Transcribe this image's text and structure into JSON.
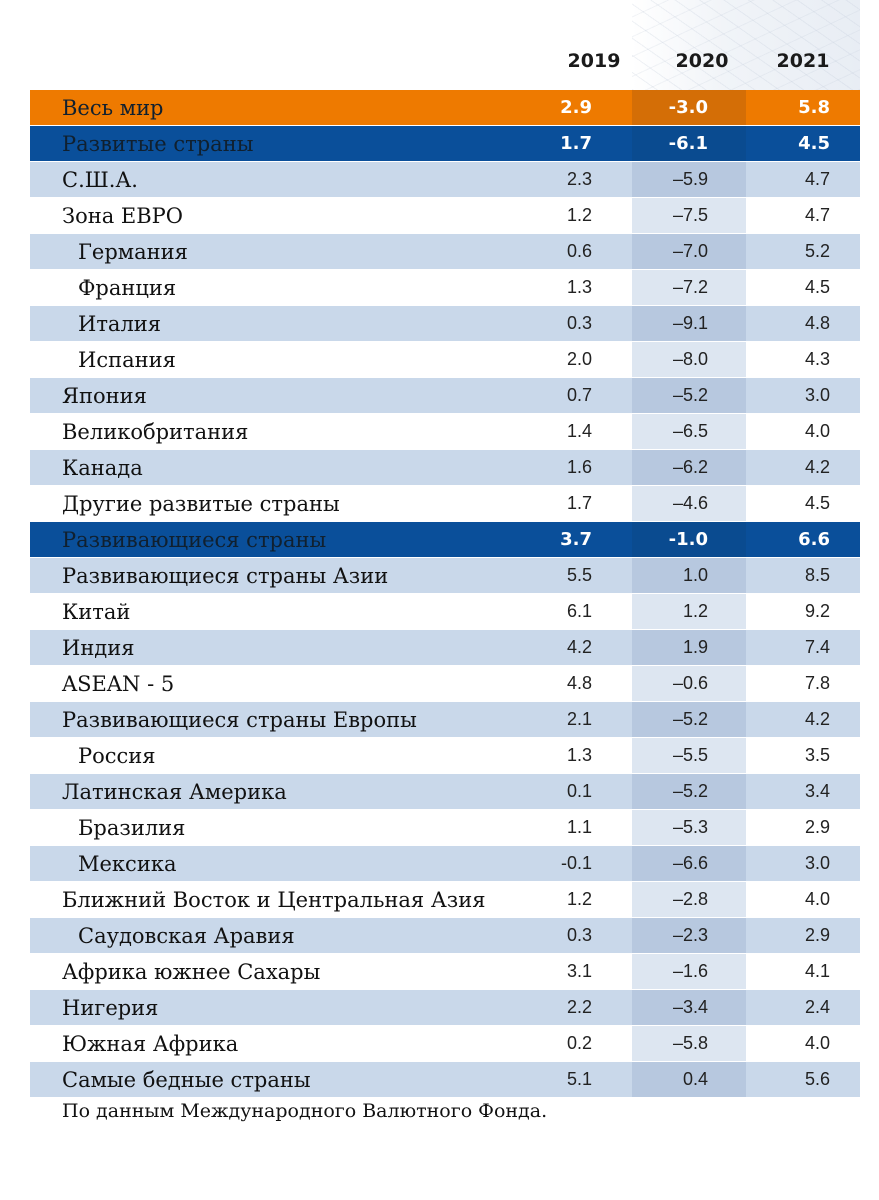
{
  "header": {
    "years": [
      "2019",
      "2020",
      "2021"
    ]
  },
  "rows": [
    {
      "name": "Весь мир",
      "v2019": "2.9",
      "v2020": "-3.0",
      "v2021": "5.8"
    },
    {
      "name": "Развитые страны",
      "v2019": "1.7",
      "v2020": "-6.1",
      "v2021": "4.5"
    },
    {
      "name": "С.Ш.А.",
      "v2019": "2.3",
      "v2020": "–5.9",
      "v2021": "4.7"
    },
    {
      "name": "Зона ЕВРО",
      "v2019": "1.2",
      "v2020": "–7.5",
      "v2021": "4.7"
    },
    {
      "name": "Германия",
      "v2019": "0.6",
      "v2020": "–7.0",
      "v2021": "5.2"
    },
    {
      "name": "Франция",
      "v2019": "1.3",
      "v2020": "–7.2",
      "v2021": "4.5"
    },
    {
      "name": "Италия",
      "v2019": "0.3",
      "v2020": "–9.1",
      "v2021": "4.8"
    },
    {
      "name": "Испания",
      "v2019": "2.0",
      "v2020": "–8.0",
      "v2021": "4.3"
    },
    {
      "name": "Япония",
      "v2019": "0.7",
      "v2020": "–5.2",
      "v2021": "3.0"
    },
    {
      "name": "Великобритания",
      "v2019": "1.4",
      "v2020": "–6.5",
      "v2021": "4.0"
    },
    {
      "name": "Канада",
      "v2019": "1.6",
      "v2020": "–6.2",
      "v2021": "4.2"
    },
    {
      "name": "Другие развитые страны",
      "v2019": "1.7",
      "v2020": "–4.6",
      "v2021": "4.5"
    },
    {
      "name": "Развивающиеся страны",
      "v2019": "3.7",
      "v2020": "-1.0",
      "v2021": "6.6"
    },
    {
      "name": "Развивающиеся страны Азии",
      "v2019": "5.5",
      "v2020": "1.0",
      "v2021": "8.5"
    },
    {
      "name": "Китай",
      "v2019": "6.1",
      "v2020": "1.2",
      "v2021": "9.2"
    },
    {
      "name": "Индия",
      "v2019": "4.2",
      "v2020": "1.9",
      "v2021": "7.4"
    },
    {
      "name": "ASEAN - 5",
      "v2019": "4.8",
      "v2020": "–0.6",
      "v2021": "7.8"
    },
    {
      "name": "Развивающиеся страны Европы",
      "v2019": "2.1",
      "v2020": "–5.2",
      "v2021": "4.2"
    },
    {
      "name": "Россия",
      "v2019": "1.3",
      "v2020": "–5.5",
      "v2021": "3.5"
    },
    {
      "name": "Латинская Америка",
      "v2019": "0.1",
      "v2020": "–5.2",
      "v2021": "3.4"
    },
    {
      "name": "Бразилия",
      "v2019": "1.1",
      "v2020": "–5.3",
      "v2021": "2.9"
    },
    {
      "name": "Мексика",
      "v2019": "-0.1",
      "v2020": "–6.6",
      "v2021": "3.0"
    },
    {
      "name": "Ближний Восток и Центральная Азия",
      "v2019": "1.2",
      "v2020": "–2.8",
      "v2021": "4.0"
    },
    {
      "name": "Саудовская Аравия",
      "v2019": "0.3",
      "v2020": "–2.3",
      "v2021": "2.9"
    },
    {
      "name": "Африка южнее Сахары",
      "v2019": "3.1",
      "v2020": "–1.6",
      "v2021": "4.1"
    },
    {
      "name": "Нигерия",
      "v2019": "2.2",
      "v2020": "–3.4",
      "v2021": "2.4"
    },
    {
      "name": "Южная Африка",
      "v2019": "0.2",
      "v2020": "–5.8",
      "v2021": "4.0"
    },
    {
      "name": "Самые бедные страны",
      "v2019": "5.1",
      "v2020": "0.4",
      "v2021": "5.6"
    }
  ],
  "source": "По данным Международного Валютного Фонда.",
  "colors": {
    "world": "#ee7a00",
    "region": "#0a4f9a",
    "stripe": "#c9d8ea"
  }
}
